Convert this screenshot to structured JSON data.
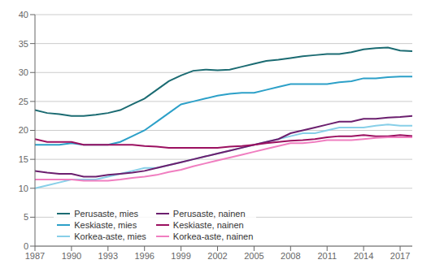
{
  "chart_data": {
    "type": "line",
    "x": [
      1987,
      1988,
      1989,
      1990,
      1991,
      1992,
      1993,
      1994,
      1995,
      1996,
      1997,
      1998,
      1999,
      2000,
      2001,
      2002,
      2003,
      2004,
      2005,
      2006,
      2007,
      2008,
      2009,
      2010,
      2011,
      2012,
      2013,
      2014,
      2015,
      2016,
      2017,
      2018
    ],
    "series": [
      {
        "name": "Perusaste, mies",
        "color": "#1b6b72",
        "values": [
          23.5,
          23.0,
          22.8,
          22.5,
          22.5,
          22.7,
          23.0,
          23.5,
          24.5,
          25.5,
          27.0,
          28.5,
          29.5,
          30.3,
          30.5,
          30.4,
          30.5,
          31.0,
          31.5,
          32.0,
          32.2,
          32.5,
          32.8,
          33.0,
          33.2,
          33.2,
          33.5,
          34.0,
          34.2,
          34.3,
          33.8,
          33.7
        ]
      },
      {
        "name": "Keskiaste, mies",
        "color": "#2ca0c8",
        "values": [
          17.5,
          17.5,
          17.5,
          17.8,
          17.5,
          17.5,
          17.5,
          18.0,
          19.0,
          20.0,
          21.5,
          23.0,
          24.5,
          25.0,
          25.5,
          26.0,
          26.3,
          26.5,
          26.5,
          27.0,
          27.5,
          28.0,
          28.0,
          28.0,
          28.0,
          28.3,
          28.5,
          29.0,
          29.0,
          29.2,
          29.3,
          29.3
        ]
      },
      {
        "name": "Korkea-aste, mies",
        "color": "#87cfe8",
        "values": [
          10.0,
          10.5,
          11.0,
          11.5,
          11.5,
          11.5,
          12.0,
          12.5,
          13.0,
          13.5,
          13.5,
          14.0,
          14.5,
          15.0,
          15.5,
          16.0,
          16.5,
          17.0,
          17.5,
          18.0,
          18.5,
          19.0,
          19.5,
          19.5,
          20.0,
          20.5,
          20.5,
          20.5,
          20.8,
          21.0,
          20.8,
          20.8
        ]
      },
      {
        "name": "Perusaste, nainen",
        "color": "#6b1f6e",
        "values": [
          13.0,
          12.7,
          12.5,
          12.5,
          12.0,
          12.0,
          12.3,
          12.5,
          12.7,
          13.0,
          13.5,
          14.0,
          14.5,
          15.0,
          15.5,
          16.0,
          16.5,
          17.0,
          17.5,
          18.0,
          18.5,
          19.5,
          20.0,
          20.5,
          21.0,
          21.5,
          21.5,
          22.0,
          22.0,
          22.2,
          22.3,
          22.5
        ]
      },
      {
        "name": "Keskiaste, nainen",
        "color": "#9b1060",
        "values": [
          18.5,
          18.0,
          18.0,
          18.0,
          17.5,
          17.5,
          17.5,
          17.5,
          17.5,
          17.3,
          17.2,
          17.0,
          17.0,
          17.0,
          17.0,
          17.0,
          17.2,
          17.3,
          17.5,
          17.8,
          18.0,
          18.2,
          18.3,
          18.5,
          18.8,
          19.0,
          19.0,
          19.2,
          19.0,
          19.0,
          19.2,
          19.0
        ]
      },
      {
        "name": "Korkea-aste, nainen",
        "color": "#f07ec0",
        "values": [
          11.5,
          11.5,
          11.5,
          11.5,
          11.3,
          11.3,
          11.3,
          11.5,
          11.8,
          12.0,
          12.3,
          12.8,
          13.2,
          13.8,
          14.3,
          14.8,
          15.3,
          15.8,
          16.3,
          16.8,
          17.3,
          17.8,
          17.8,
          18.0,
          18.3,
          18.3,
          18.3,
          18.5,
          18.7,
          18.8,
          18.8,
          18.8
        ]
      }
    ],
    "xlim": [
      1987,
      2018
    ],
    "xticks": [
      1987,
      1990,
      1993,
      1996,
      1999,
      2002,
      2005,
      2008,
      2011,
      2014,
      2017
    ],
    "ylim": [
      0,
      40
    ],
    "yticks": [
      0,
      5,
      10,
      15,
      20,
      25,
      30,
      35,
      40
    ],
    "grid": true,
    "legend": "lower left"
  }
}
